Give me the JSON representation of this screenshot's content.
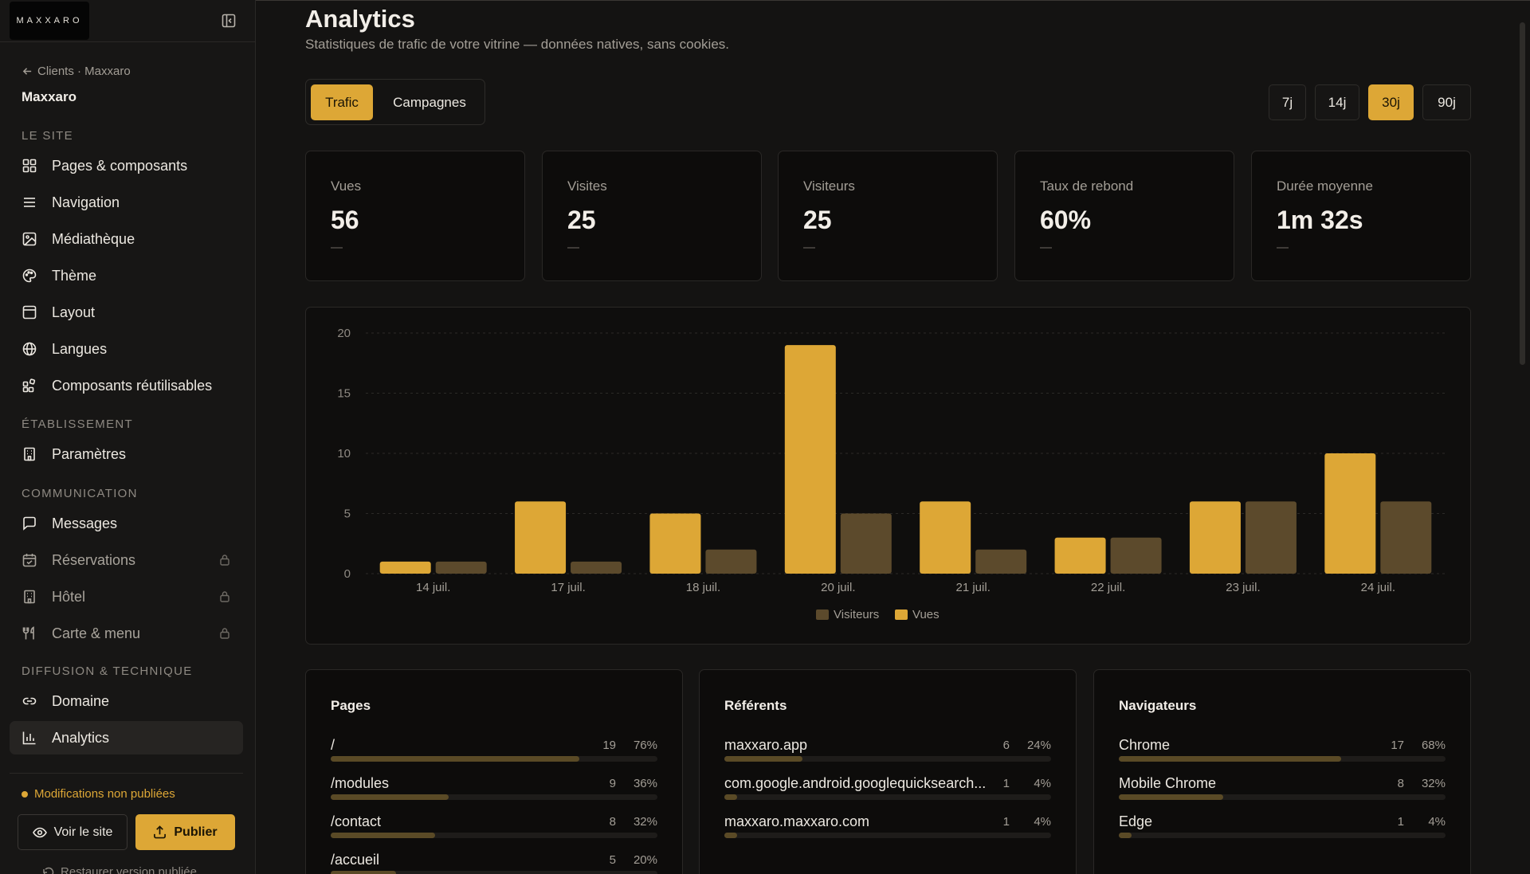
{
  "brand": {
    "logo_text": "MAXXARO"
  },
  "sidebar": {
    "breadcrumb": "Clients · Maxxaro",
    "client_name": "Maxxaro",
    "sections": {
      "site": "LE SITE",
      "establishment": "ÉTABLISSEMENT",
      "communication": "COMMUNICATION",
      "diffusion": "DIFFUSION & TECHNIQUE"
    },
    "items": {
      "pages": {
        "label": "Pages & composants",
        "icon": "grid-icon"
      },
      "navigation": {
        "label": "Navigation",
        "icon": "menu-lines-icon"
      },
      "media": {
        "label": "Médiathèque",
        "icon": "image-icon"
      },
      "theme": {
        "label": "Thème",
        "icon": "palette-icon"
      },
      "layout": {
        "label": "Layout",
        "icon": "layout-icon"
      },
      "languages": {
        "label": "Langues",
        "icon": "globe-icon"
      },
      "reusable": {
        "label": "Composants réutilisables",
        "icon": "blocks-icon"
      },
      "settings": {
        "label": "Paramètres",
        "icon": "building-icon"
      },
      "messages": {
        "label": "Messages",
        "icon": "message-icon"
      },
      "reservations": {
        "label": "Réservations",
        "icon": "calendar-icon",
        "locked": true
      },
      "hotel": {
        "label": "Hôtel",
        "icon": "bed-icon",
        "locked": true
      },
      "menu": {
        "label": "Carte & menu",
        "icon": "utensils-icon",
        "locked": true
      },
      "domain": {
        "label": "Domaine",
        "icon": "link-icon"
      },
      "analytics": {
        "label": "Analytics",
        "icon": "bar-chart-icon",
        "active": true
      }
    },
    "unpublished": "Modifications non publiées",
    "view_site": "Voir le site",
    "publish": "Publier",
    "restore": "Restaurer version publiée"
  },
  "header": {
    "title": "Analytics",
    "subtitle": "Statistiques de trafic de votre vitrine — données natives, sans cookies."
  },
  "tabs": [
    {
      "label": "Trafic",
      "active": true
    },
    {
      "label": "Campagnes",
      "active": false
    }
  ],
  "ranges": [
    {
      "label": "7j",
      "active": false
    },
    {
      "label": "14j",
      "active": false
    },
    {
      "label": "30j",
      "active": true
    },
    {
      "label": "90j",
      "active": false
    }
  ],
  "kpis": [
    {
      "label": "Vues",
      "value": "56",
      "delta": "—"
    },
    {
      "label": "Visites",
      "value": "25",
      "delta": "—"
    },
    {
      "label": "Visiteurs",
      "value": "25",
      "delta": "—"
    },
    {
      "label": "Taux de rebond",
      "value": "60%",
      "delta": "—"
    },
    {
      "label": "Durée moyenne",
      "value": "1m 32s",
      "delta": "—"
    }
  ],
  "colors": {
    "accent": "#DDA736",
    "visitors": "#5C4A2C",
    "background": "#141312"
  },
  "chart_data": {
    "type": "bar",
    "categories": [
      "14 juil.",
      "17 juil.",
      "18 juil.",
      "20 juil.",
      "21 juil.",
      "22 juil.",
      "23 juil.",
      "24 juil."
    ],
    "series": [
      {
        "name": "Vues",
        "values": [
          1,
          6,
          5,
          19,
          6,
          3,
          6,
          10
        ]
      },
      {
        "name": "Visiteurs",
        "values": [
          1,
          1,
          2,
          5,
          2,
          3,
          6,
          6
        ]
      }
    ],
    "yticks": [
      "0",
      "5",
      "10",
      "15",
      "20"
    ],
    "ylim": [
      0,
      20
    ],
    "grid": true,
    "legend_position": "bottom-center",
    "legend": [
      "Visiteurs",
      "Vues"
    ]
  },
  "lists": [
    {
      "title": "Pages",
      "rows": [
        {
          "label": "/",
          "count": "19",
          "pct": "76%",
          "ratio": 0.76
        },
        {
          "label": "/modules",
          "count": "9",
          "pct": "36%",
          "ratio": 0.36
        },
        {
          "label": "/contact",
          "count": "8",
          "pct": "32%",
          "ratio": 0.32
        },
        {
          "label": "/accueil",
          "count": "5",
          "pct": "20%",
          "ratio": 0.2
        }
      ]
    },
    {
      "title": "Référents",
      "rows": [
        {
          "label": "maxxaro.app",
          "count": "6",
          "pct": "24%",
          "ratio": 0.24
        },
        {
          "label": "com.google.android.googlequicksearch...",
          "count": "1",
          "pct": "4%",
          "ratio": 0.04
        },
        {
          "label": "maxxaro.maxxaro.com",
          "count": "1",
          "pct": "4%",
          "ratio": 0.04
        }
      ]
    },
    {
      "title": "Navigateurs",
      "rows": [
        {
          "label": "Chrome",
          "count": "17",
          "pct": "68%",
          "ratio": 0.68
        },
        {
          "label": "Mobile Chrome",
          "count": "8",
          "pct": "32%",
          "ratio": 0.32
        },
        {
          "label": "Edge",
          "count": "1",
          "pct": "4%",
          "ratio": 0.04
        }
      ]
    }
  ]
}
